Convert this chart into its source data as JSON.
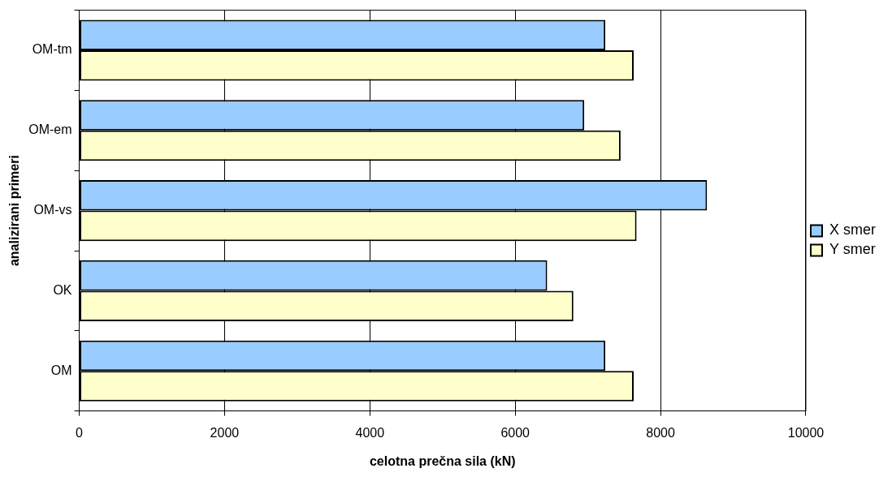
{
  "chart_data": {
    "type": "bar",
    "orientation": "horizontal",
    "xlabel": "celotna prečna sila (kN)",
    "ylabel": "analizirani primeri",
    "categories": [
      "OM-tm",
      "OM-em",
      "OM-vs",
      "OK",
      "OM"
    ],
    "series": [
      {
        "name": "X smer",
        "color": "#99ccff",
        "values": [
          7240,
          6950,
          8640,
          6440,
          7240
        ]
      },
      {
        "name": "Y smer",
        "color": "#ffffcc",
        "values": [
          7630,
          7450,
          7670,
          6800,
          7630
        ]
      }
    ],
    "xlim": [
      0,
      10000
    ],
    "xticks": [
      0,
      2000,
      4000,
      6000,
      8000,
      10000
    ],
    "grid": "x",
    "legend": "right"
  }
}
